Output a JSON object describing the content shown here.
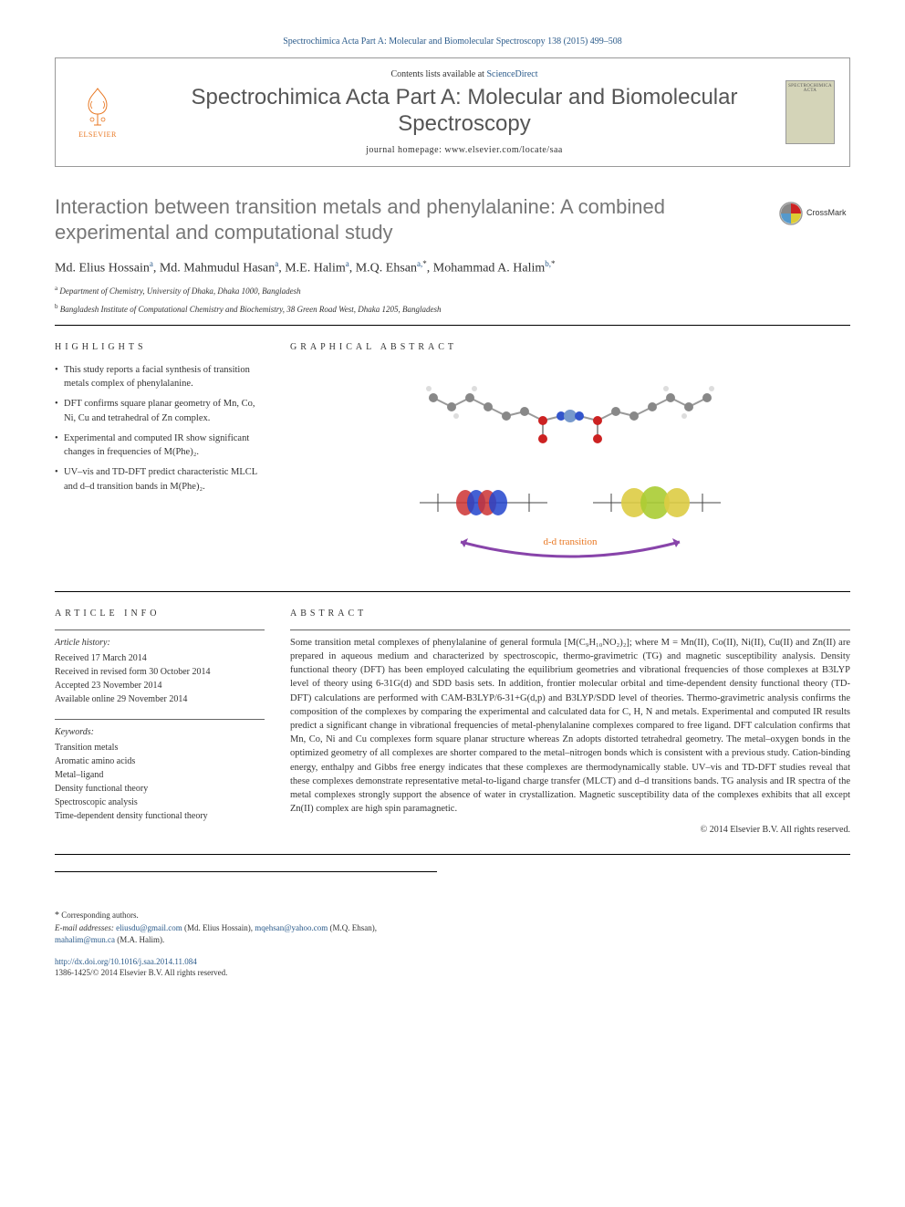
{
  "journal_ref": "Spectrochimica Acta Part A: Molecular and Biomolecular Spectroscopy 138 (2015) 499–508",
  "header": {
    "contents_prefix": "Contents lists available at ",
    "contents_link": "ScienceDirect",
    "journal_title": "Spectrochimica Acta Part A: Molecular and Biomolecular Spectroscopy",
    "homepage_prefix": "journal homepage: ",
    "homepage_url": "www.elsevier.com/locate/saa",
    "elsevier": "ELSEVIER",
    "cover_text": "SPECTROCHIMICA ACTA"
  },
  "crossmark_label": "CrossMark",
  "title": "Interaction between transition metals and phenylalanine: A combined experimental and computational study",
  "authors_html": "Md. Elius Hossain<sup>a</sup>, Md. Mahmudul Hasan<sup>a</sup>, M.E. Halim<sup>a</sup>, M.Q. Ehsan<sup>a,</sup><sup class='star'>*</sup>, Mohammad A. Halim<sup>b,</sup><sup class='star'>*</sup>",
  "affiliations": [
    {
      "sup": "a",
      "text": "Department of Chemistry, University of Dhaka, Dhaka 1000, Bangladesh"
    },
    {
      "sup": "b",
      "text": "Bangladesh Institute of Computational Chemistry and Biochemistry, 38 Green Road West, Dhaka 1205, Bangladesh"
    }
  ],
  "labels": {
    "highlights": "HIGHLIGHTS",
    "graphical": "GRAPHICAL ABSTRACT",
    "article_info": "ARTICLE INFO",
    "abstract": "ABSTRACT"
  },
  "highlights": [
    "This study reports a facial synthesis of transition metals complex of phenylalanine.",
    "DFT confirms square planar geometry of Mn, Co, Ni, Cu and tetrahedral of Zn complex.",
    "Experimental and computed IR show significant changes in frequencies of M(Phe)₂.",
    "UV–vis and TD-DFT predict characteristic MLCL and d–d transition bands in M(Phe)₂."
  ],
  "transition_label": "d-d transition",
  "article_info": {
    "history_heading": "Article history:",
    "history": [
      "Received 17 March 2014",
      "Received in revised form 30 October 2014",
      "Accepted 23 November 2014",
      "Available online 29 November 2014"
    ],
    "keywords_heading": "Keywords:",
    "keywords": [
      "Transition metals",
      "Aromatic amino acids",
      "Metal–ligand",
      "Density functional theory",
      "Spectroscopic analysis",
      "Time-dependent density functional theory"
    ]
  },
  "abstract": "Some transition metal complexes of phenylalanine of general formula [M(C₉H₁₀NO₂)₂]; where M = Mn(II), Co(II), Ni(II), Cu(II) and Zn(II) are prepared in aqueous medium and characterized by spectroscopic, thermo-gravimetric (TG) and magnetic susceptibility analysis. Density functional theory (DFT) has been employed calculating the equilibrium geometries and vibrational frequencies of those complexes at B3LYP level of theory using 6-31G(d) and SDD basis sets. In addition, frontier molecular orbital and time-dependent density functional theory (TD-DFT) calculations are performed with CAM-B3LYP/6-31+G(d,p) and B3LYP/SDD level of theories. Thermo-gravimetric analysis confirms the composition of the complexes by comparing the experimental and calculated data for C, H, N and metals. Experimental and computed IR results predict a significant change in vibrational frequencies of metal-phenylalanine complexes compared to free ligand. DFT calculation confirms that Mn, Co, Ni and Cu complexes form square planar structure whereas Zn adopts distorted tetrahedral geometry. The metal–oxygen bonds in the optimized geometry of all complexes are shorter compared to the metal–nitrogen bonds which is consistent with a previous study. Cation-binding energy, enthalpy and Gibbs free energy indicates that these complexes are thermodynamically stable. UV–vis and TD-DFT studies reveal that these complexes demonstrate representative metal-to-ligand charge transfer (MLCT) and d–d transitions bands. TG analysis and IR spectra of the metal complexes strongly support the absence of water in crystallization. Magnetic susceptibility data of the complexes exhibits that all except Zn(II) complex are high spin paramagnetic.",
  "copyright": "© 2014 Elsevier B.V. All rights reserved.",
  "footnotes": {
    "corr": "Corresponding authors.",
    "email_label": "E-mail addresses:",
    "emails": [
      {
        "addr": "eliusdu@gmail.com",
        "name": "(Md. Elius Hossain)"
      },
      {
        "addr": "mqehsan@yahoo.com",
        "name": "(M.Q. Ehsan)"
      },
      {
        "addr": "mahalim@mun.ca",
        "name": "(M.A. Halim)"
      }
    ]
  },
  "footer": {
    "doi": "http://dx.doi.org/10.1016/j.saa.2014.11.084",
    "issn_line": "1386-1425/© 2014 Elsevier B.V. All rights reserved."
  },
  "colors": {
    "link": "#2a5a8a",
    "elsevier_orange": "#e87722",
    "title_gray": "#777777",
    "body_text": "#333333"
  },
  "graphical_abstract": {
    "top_molecule": {
      "atom_colors": {
        "C": "#888888",
        "H": "#dddddd",
        "N": "#3355cc",
        "O": "#cc2222",
        "M": "#7799cc"
      },
      "bond_color": "#999999"
    },
    "orbital_left": {
      "lobe_colors": [
        "#2244cc",
        "#cc3333"
      ],
      "skeleton_color": "#444444"
    },
    "orbital_right": {
      "lobe_colors": [
        "#aacc33",
        "#ddcc44"
      ],
      "skeleton_color": "#444444"
    },
    "arrow_color": "#8844aa"
  }
}
